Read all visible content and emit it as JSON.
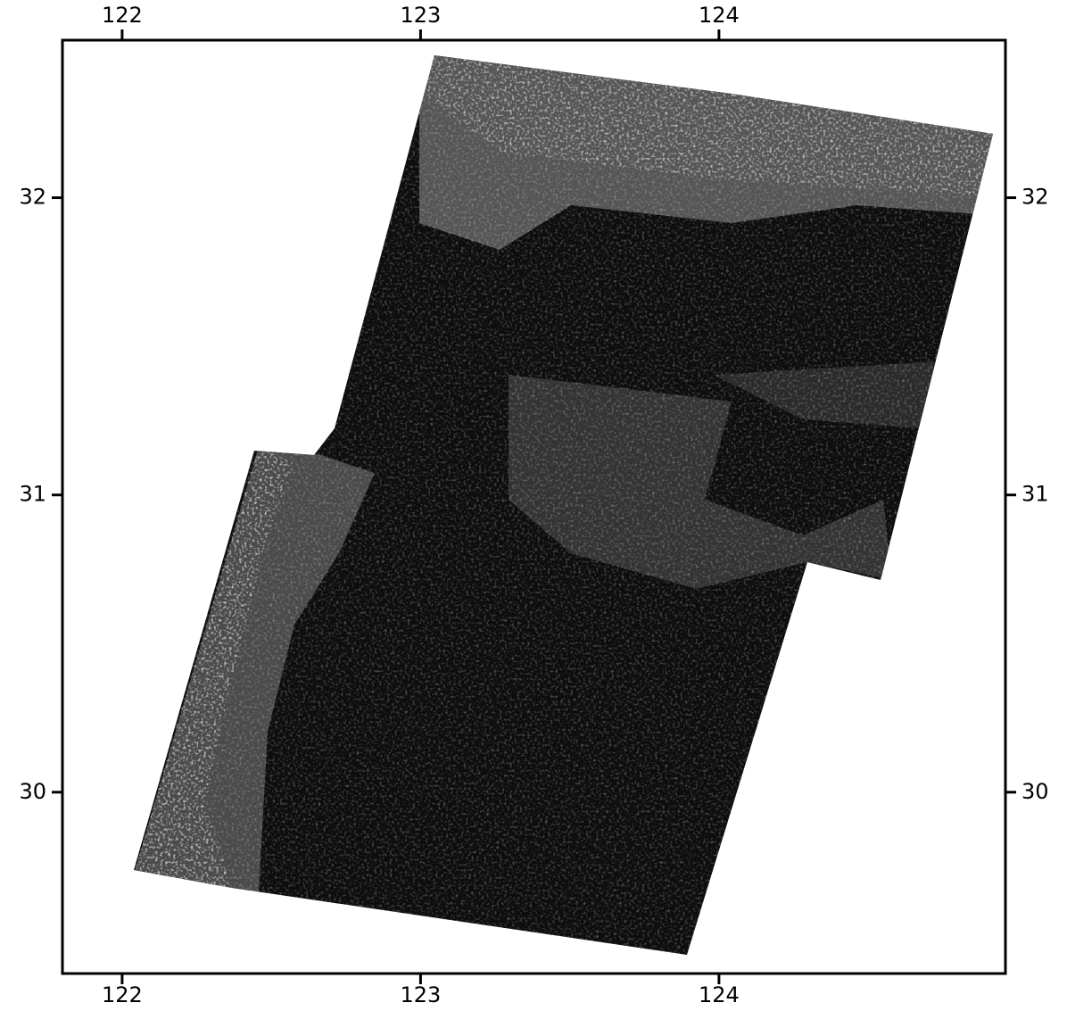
{
  "map": {
    "xlim": [
      121.8,
      124.96
    ],
    "ylim": [
      29.39,
      32.53
    ],
    "xticks": [
      122,
      123,
      124
    ],
    "yticks": [
      30,
      31,
      32
    ]
  }
}
